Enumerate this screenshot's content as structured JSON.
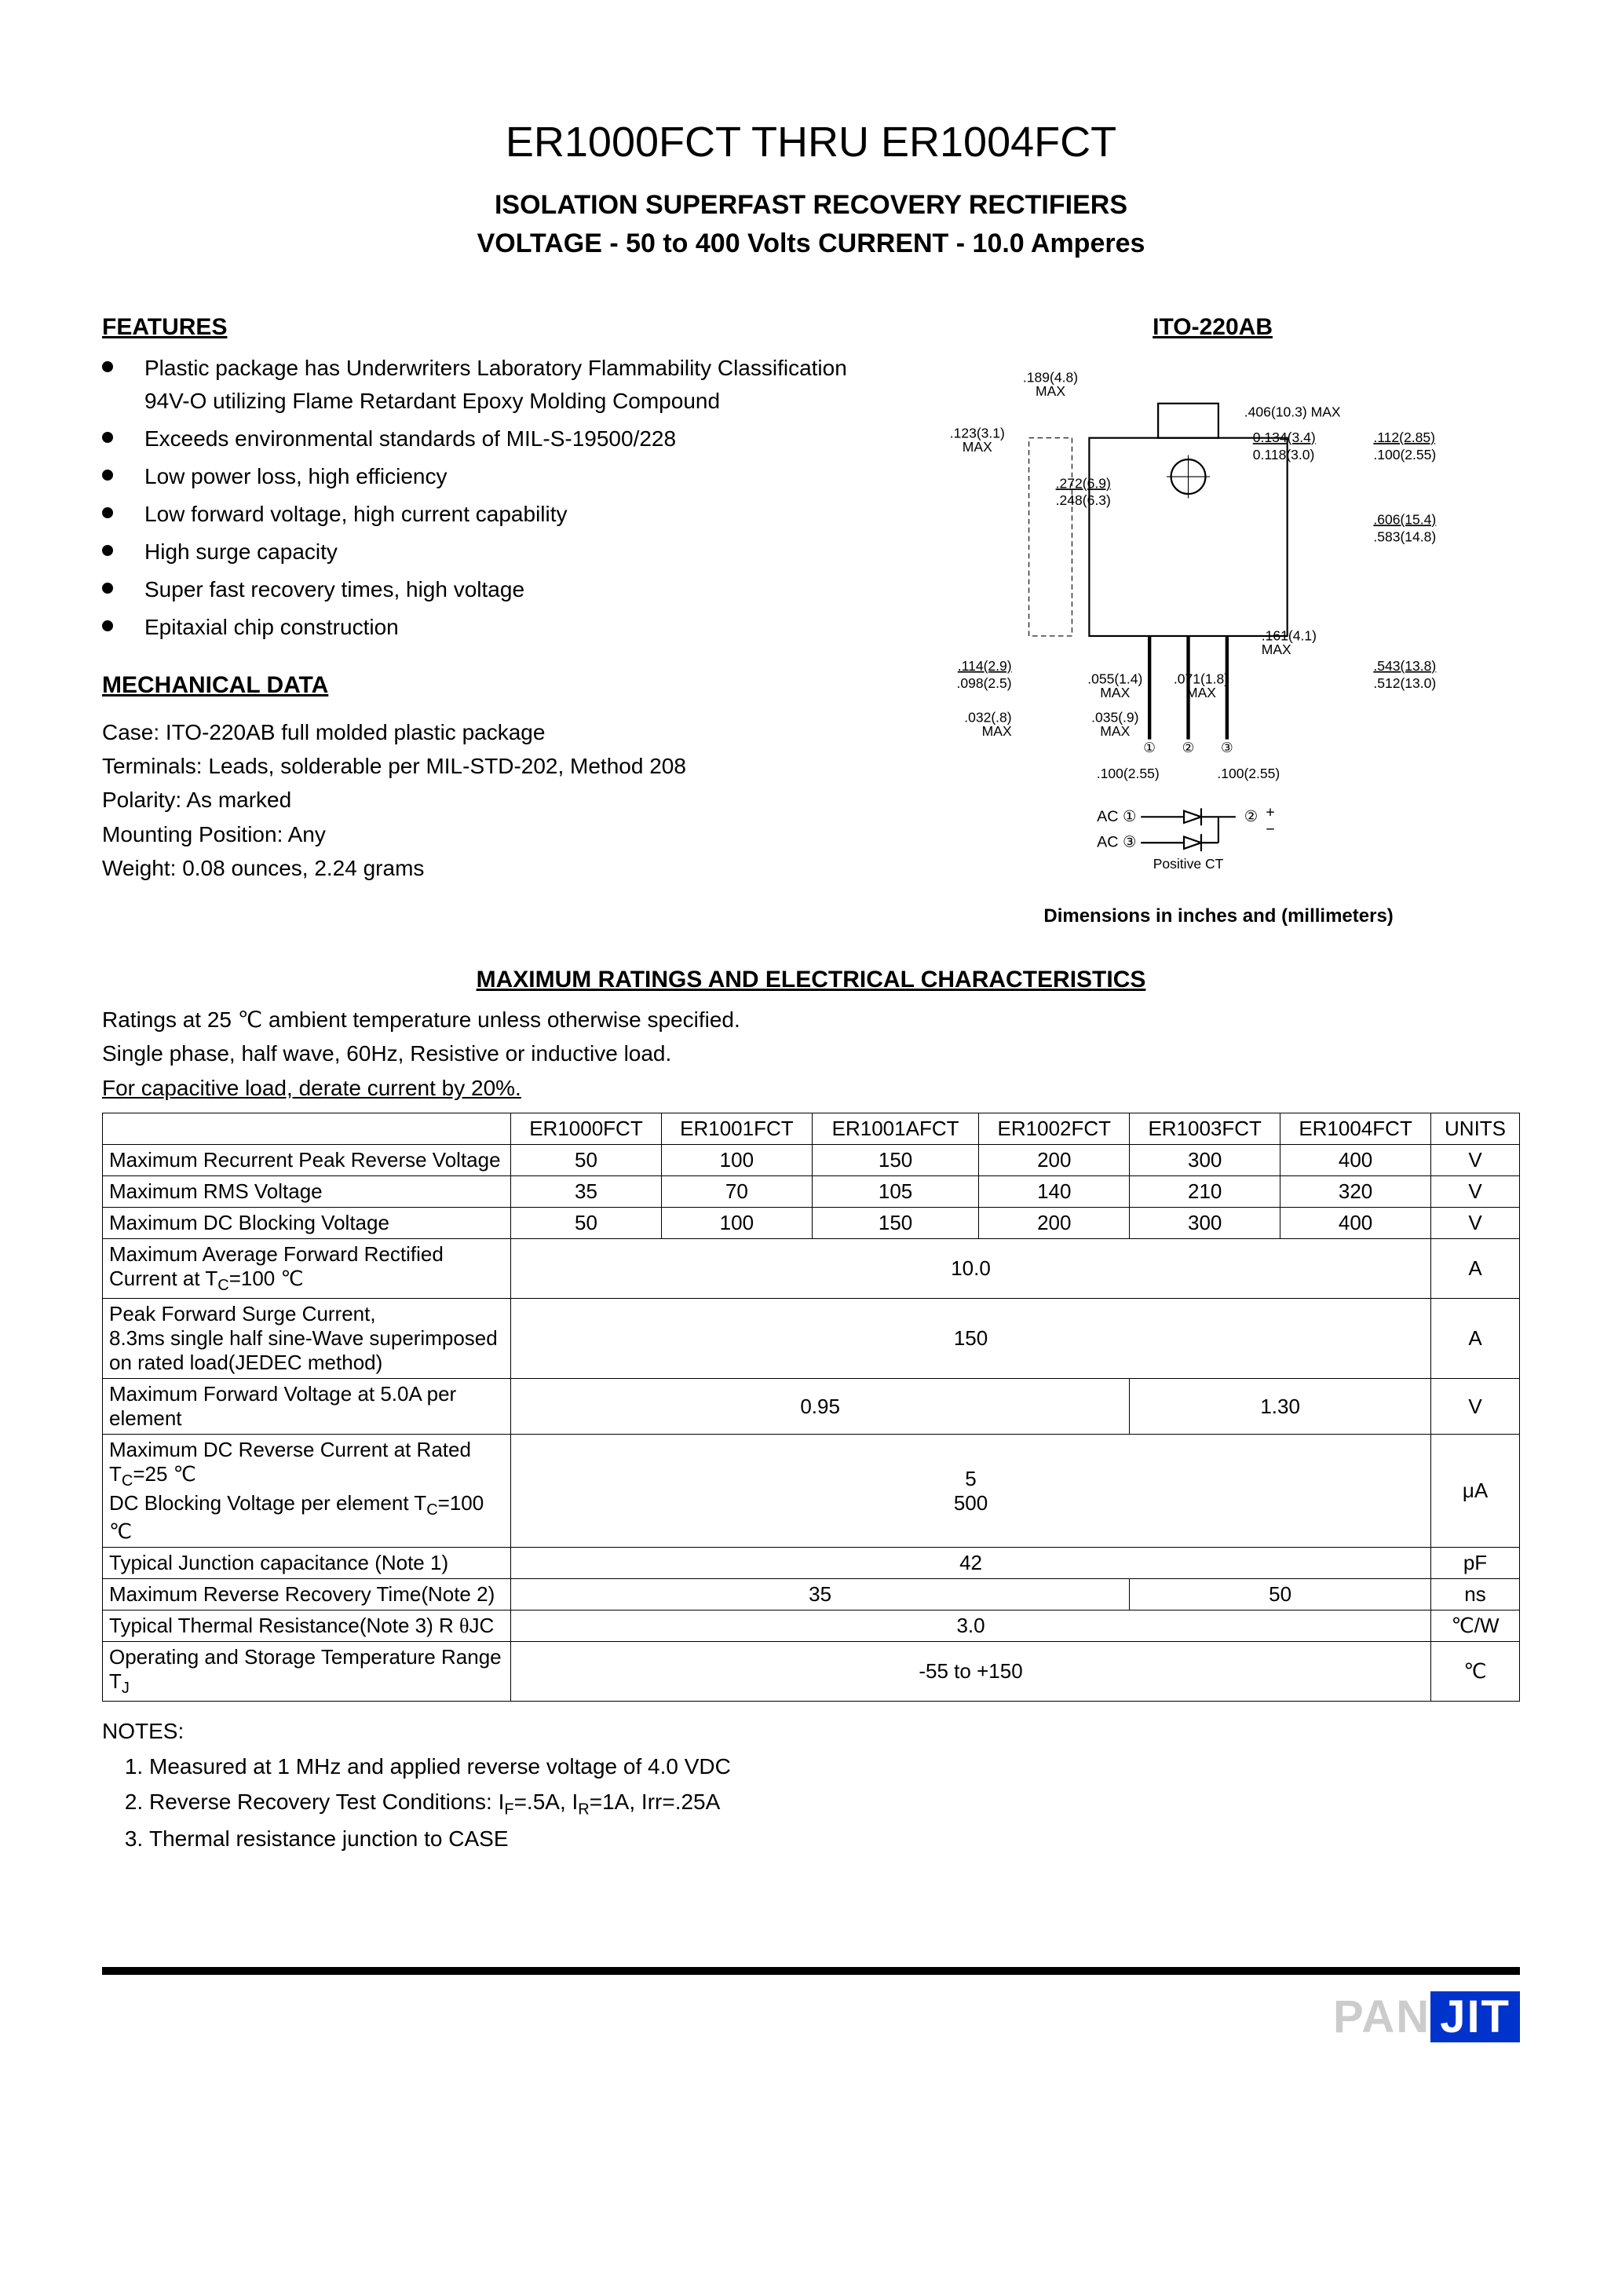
{
  "title": {
    "main": "ER1000FCT THRU ER1004FCT",
    "sub1": "ISOLATION SUPERFAST RECOVERY RECTIFIERS",
    "sub2": "VOLTAGE - 50 to 400 Volts    CURRENT - 10.0 Amperes"
  },
  "features": {
    "heading": "FEATURES",
    "items": [
      "Plastic package has Underwriters Laboratory Flammability Classification 94V-O utilizing Flame Retardant Epoxy Molding Compound",
      "Exceeds environmental standards of MIL-S-19500/228",
      "Low power loss, high efficiency",
      "Low forward voltage, high current capability",
      "High surge capacity",
      "Super fast recovery times, high voltage",
      "Epitaxial chip construction"
    ]
  },
  "mechanical": {
    "heading": "MECHANICAL DATA",
    "lines": [
      "Case: ITO-220AB full molded plastic package",
      "Terminals: Leads, solderable per MIL-STD-202, Method 208",
      "Polarity: As marked",
      "Mounting Position: Any",
      "Weight: 0.08 ounces, 2.24 grams"
    ]
  },
  "package": {
    "heading": "ITO-220AB",
    "caption": "Dimensions in inches and (millimeters)",
    "dims": {
      "d189_48": ".189(4.8)\nMAX",
      "d123_31": ".123(3.1)\nMAX",
      "d406_103": ".406(10.3) MAX",
      "d134_34": "0.134(3.4)",
      "d118_30": "0.118(3.0)",
      "d112_285": ".112(2.85)",
      "d100_255": ".100(2.55)",
      "d272_69": ".272(6.9)",
      "d248_63": ".248(6.3)",
      "d606_154": ".606(15.4)",
      "d583_148": ".583(14.8)",
      "d161_41": ".161(4.1)\nMAX",
      "d114_29": ".114(2.9)",
      "d098_25": ".098(2.5)",
      "d055_14": ".055(1.4)\nMAX",
      "d071_18": ".071(1.8)\nMAX",
      "d543_138": ".543(13.8)",
      "d512_130": ".512(13.0)",
      "d032_8": ".032(.8)\nMAX",
      "d035_9": ".035(.9)\nMAX",
      "d100_255b": ".100(2.55)",
      "d100_255c": ".100(2.55)",
      "ac1": "AC ①",
      "ac3": "AC ③",
      "pin2": "②",
      "pos": "+",
      "neg": "−",
      "ct": "Positive CT"
    }
  },
  "ratings": {
    "heading": "MAXIMUM RATINGS AND ELECTRICAL CHARACTERISTICS",
    "intro1": "Ratings at 25 ℃  ambient temperature unless otherwise specified.",
    "intro2": "Single phase, half wave, 60Hz, Resistive or inductive load.",
    "intro3": "For capacitive load, derate current by 20%.",
    "columns": [
      "ER1000FCT",
      "ER1001FCT",
      "ER1001AFCT",
      "ER1002FCT",
      "ER1003FCT",
      "ER1004FCT",
      "UNITS"
    ],
    "rows": [
      {
        "param": "Maximum Recurrent Peak Reverse Voltage",
        "vals": [
          "50",
          "100",
          "150",
          "200",
          "300",
          "400"
        ],
        "units": "V"
      },
      {
        "param": "Maximum RMS Voltage",
        "vals": [
          "35",
          "70",
          "105",
          "140",
          "210",
          "320"
        ],
        "units": "V"
      },
      {
        "param": "Maximum DC Blocking Voltage",
        "vals": [
          "50",
          "100",
          "150",
          "200",
          "300",
          "400"
        ],
        "units": "V"
      },
      {
        "param": "Maximum Average Forward Rectified Current at T_C=100 ℃",
        "span": "10.0",
        "units": "A"
      },
      {
        "param": "Peak Forward Surge Current,\n8.3ms single half sine-Wave superimposed on rated load(JEDEC method)",
        "span": "150",
        "units": "A"
      },
      {
        "param": "Maximum Forward Voltage at 5.0A per element",
        "split": [
          "0.95",
          "1.30"
        ],
        "units": "V"
      },
      {
        "param": "Maximum DC Reverse Current at Rated T_C=25 ℃\nDC Blocking Voltage per element T_C=100 ℃",
        "span2": [
          "5",
          "500"
        ],
        "units": "μA"
      },
      {
        "param": "Typical Junction capacitance (Note 1)",
        "span": "42",
        "units": "pF"
      },
      {
        "param": "Maximum Reverse Recovery Time(Note 2)",
        "split": [
          "35",
          "50"
        ],
        "units": "ns"
      },
      {
        "param": "Typical Thermal Resistance(Note 3) R θJC",
        "span": "3.0",
        "units": "℃/W"
      },
      {
        "param": "Operating and Storage Temperature Range T_J",
        "span": "-55 to +150",
        "units": "℃"
      }
    ]
  },
  "notes": {
    "heading": "NOTES:",
    "items": [
      "Measured at 1 MHz and applied reverse voltage of 4.0 VDC",
      "Reverse Recovery Test Conditions: I_F=.5A, I_R=1A, Irr=.25A",
      "Thermal resistance junction to CASE"
    ]
  },
  "logo": {
    "pan": "PAN",
    "jit": "JIT"
  }
}
